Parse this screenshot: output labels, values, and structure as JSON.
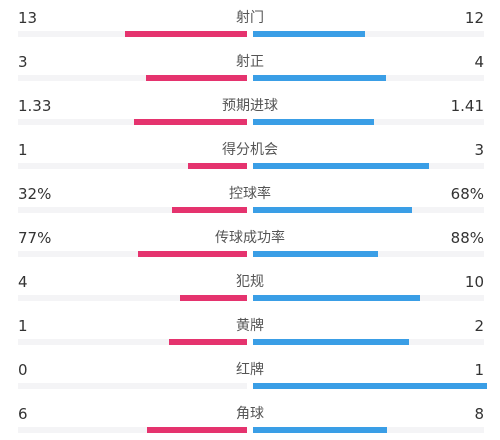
{
  "colors": {
    "home_bar": "#e5336e",
    "away_bar": "#3a9ee6",
    "track": "#f4f4f6"
  },
  "stats": [
    {
      "label": "射门",
      "home": "13",
      "away": "12",
      "home_share": 0.52,
      "away_share": 0.48
    },
    {
      "label": "射正",
      "home": "3",
      "away": "4",
      "home_share": 0.43,
      "away_share": 0.57
    },
    {
      "label": "预期进球",
      "home": "1.33",
      "away": "1.41",
      "home_share": 0.485,
      "away_share": 0.515
    },
    {
      "label": "得分机会",
      "home": "1",
      "away": "3",
      "home_share": 0.25,
      "away_share": 0.75
    },
    {
      "label": "控球率",
      "home": "32%",
      "away": "68%",
      "home_share": 0.32,
      "away_share": 0.68
    },
    {
      "label": "传球成功率",
      "home": "77%",
      "away": "88%",
      "home_share": 0.466,
      "away_share": 0.534
    },
    {
      "label": "犯规",
      "home": "4",
      "away": "10",
      "home_share": 0.286,
      "away_share": 0.714
    },
    {
      "label": "黄牌",
      "home": "1",
      "away": "2",
      "home_share": 0.333,
      "away_share": 0.667
    },
    {
      "label": "红牌",
      "home": "0",
      "away": "1",
      "home_share": 0,
      "away_share": 1
    },
    {
      "label": "角球",
      "home": "6",
      "away": "8",
      "home_share": 0.429,
      "away_share": 0.571
    }
  ]
}
